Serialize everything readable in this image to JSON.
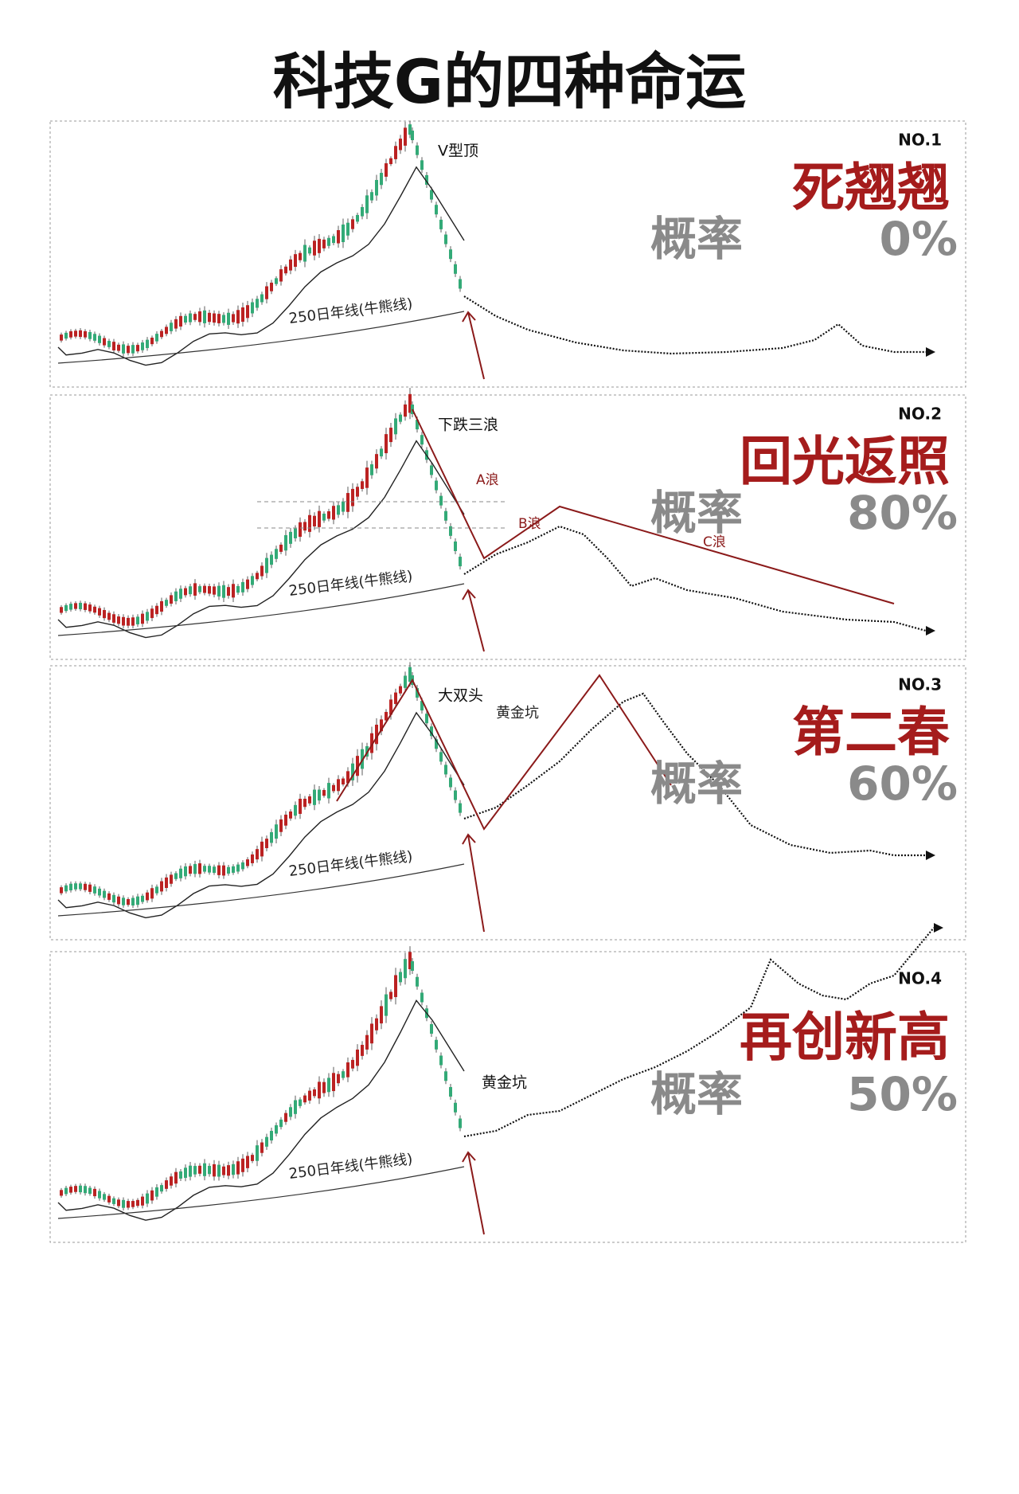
{
  "header": {
    "title": "科技G的四种命运"
  },
  "panels": [
    {
      "no": "NO.1",
      "name": "死翘翘",
      "prob_label": "概率",
      "prob": "0%",
      "pattern": "V型顶",
      "ma_label": "250日年线(牛熊线)",
      "notes": []
    },
    {
      "no": "NO.2",
      "name": "回光返照",
      "prob_label": "概率",
      "prob": "80%",
      "pattern": "下跌三浪",
      "ma_label": "250日年线(牛熊线)",
      "notes": [
        "A浪",
        "B浪",
        "C浪"
      ]
    },
    {
      "no": "NO.3",
      "name": "第二春",
      "prob_label": "概率",
      "prob": "60%",
      "pattern": "大双头",
      "ma_label": "250日年线(牛熊线)",
      "notes": [
        "黄金坑"
      ]
    },
    {
      "no": "NO.4",
      "name": "再创新高",
      "prob_label": "概率",
      "prob": "50%",
      "pattern": "黄金坑",
      "ma_label": "250日年线(牛熊线)",
      "notes": []
    }
  ]
}
